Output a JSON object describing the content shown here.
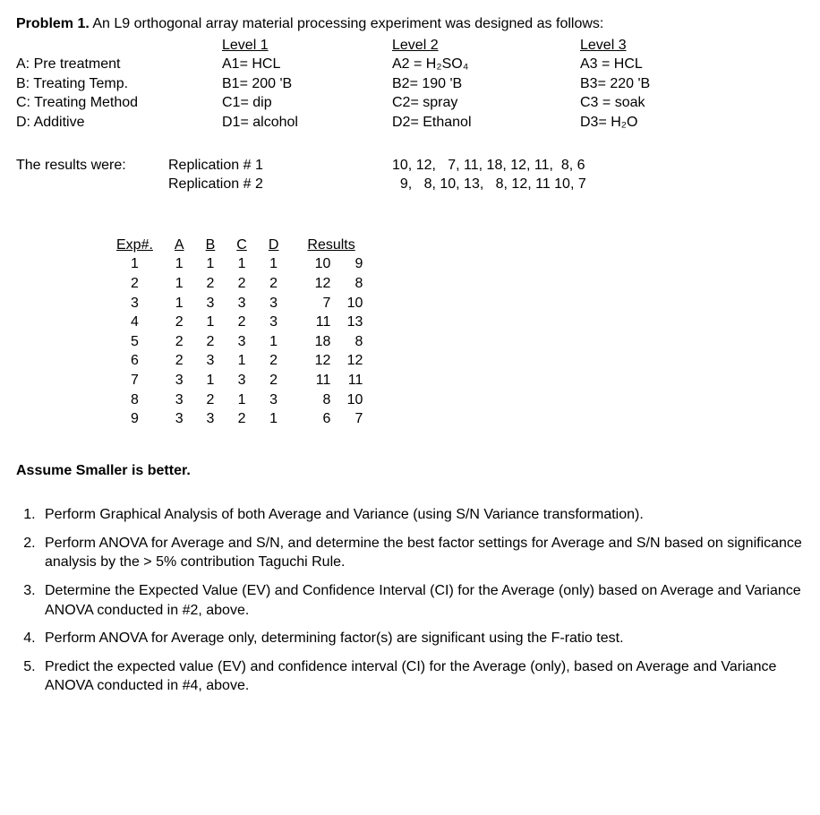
{
  "title_label": "Problem 1.",
  "title_rest": "   An L9 orthogonal array material processing experiment was designed as follows:",
  "level_headers": [
    "Level 1",
    "Level 2",
    "Level 3"
  ],
  "factors": [
    {
      "name": "A: Pre treatment",
      "l1": "A1= HCL",
      "l2": "A2 = H₂SO₄",
      "l3": "A3 = HCL"
    },
    {
      "name": "B: Treating Temp.",
      "l1": "B1= 200 'B",
      "l2": "B2= 190 'B",
      "l3": "B3= 220 'B"
    },
    {
      "name": "C: Treating Method",
      "l1": "C1= dip",
      "l2": "C2= spray",
      "l3": "C3 = soak"
    },
    {
      "name": "D: Additive",
      "l1": "D1= alcohol",
      "l2": "D2= Ethanol",
      "l3": "D3= H₂O"
    }
  ],
  "results_label": "The results were:",
  "rep1_label": "Replication # 1",
  "rep2_label": "Replication # 2",
  "rep1_values": "10, 12,   7, 11, 18, 12, 11,  8, 6",
  "rep2_values": "  9,   8, 10, 13,   8, 12, 11 10, 7",
  "array_headers": [
    "Exp#.",
    "A",
    "B",
    "C",
    "D",
    "Results"
  ],
  "array_rows": [
    {
      "exp": "1",
      "a": "1",
      "b": "1",
      "c": "1",
      "d": "1",
      "r1": "10",
      "r2": "9"
    },
    {
      "exp": "2",
      "a": "1",
      "b": "2",
      "c": "2",
      "d": "2",
      "r1": "12",
      "r2": "8"
    },
    {
      "exp": "3",
      "a": "1",
      "b": "3",
      "c": "3",
      "d": "3",
      "r1": "7",
      "r2": "10"
    },
    {
      "exp": "4",
      "a": "2",
      "b": "1",
      "c": "2",
      "d": "3",
      "r1": "11",
      "r2": "13"
    },
    {
      "exp": "5",
      "a": "2",
      "b": "2",
      "c": "3",
      "d": "1",
      "r1": "18",
      "r2": "8"
    },
    {
      "exp": "6",
      "a": "2",
      "b": "3",
      "c": "1",
      "d": "2",
      "r1": "12",
      "r2": "12"
    },
    {
      "exp": "7",
      "a": "3",
      "b": "1",
      "c": "3",
      "d": "2",
      "r1": "11",
      "r2": "11"
    },
    {
      "exp": "8",
      "a": "3",
      "b": "2",
      "c": "1",
      "d": "3",
      "r1": "8",
      "r2": "10"
    },
    {
      "exp": "9",
      "a": "3",
      "b": "3",
      "c": "2",
      "d": "1",
      "r1": "6",
      "r2": "7"
    }
  ],
  "assume_text": "Assume Smaller is better.",
  "questions": [
    "Perform Graphical Analysis of both Average and Variance (using S/N Variance transformation).",
    "Perform ANOVA for Average and S/N, and determine the best factor settings for Average and S/N based on significance analysis by the > 5% contribution Taguchi Rule.",
    "Determine the Expected Value (EV) and Confidence Interval (CI) for the Average (only) based on Average and Variance ANOVA conducted in #2, above.",
    "Perform ANOVA for Average only, determining factor(s) are significant using the F-ratio test.",
    "Predict the expected value (EV) and confidence interval (CI) for the Average (only), based on Average and Variance ANOVA conducted in #4, above."
  ]
}
